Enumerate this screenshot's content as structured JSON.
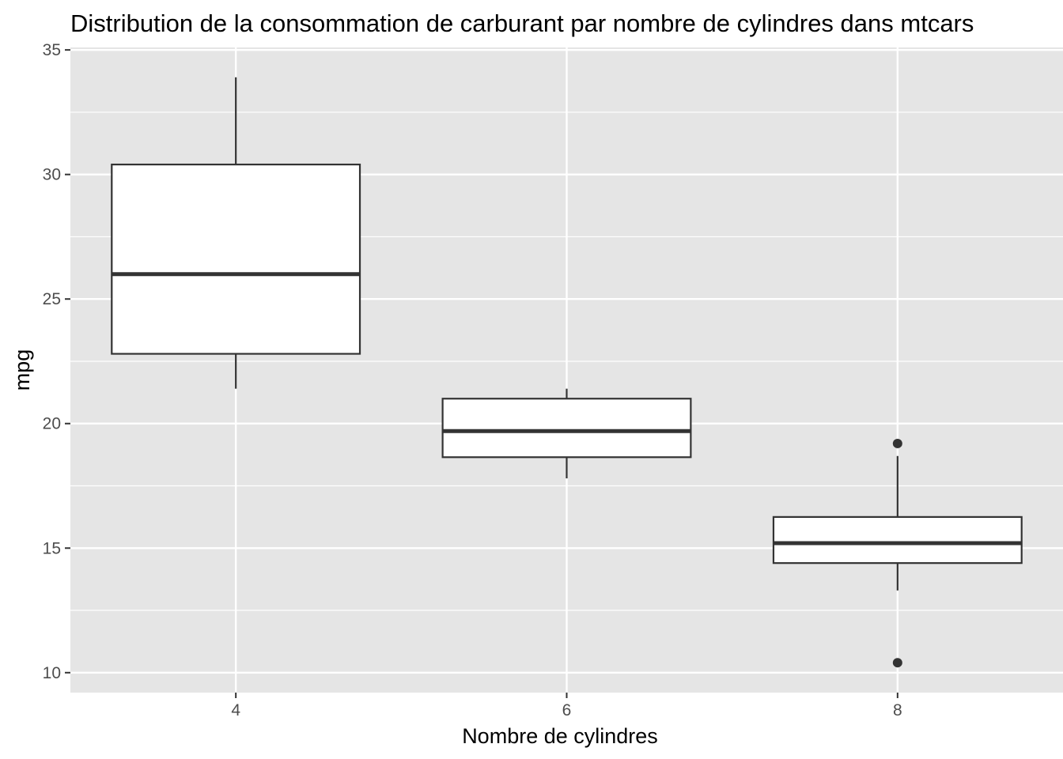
{
  "chart_data": {
    "type": "boxplot",
    "title": "Distribution de la consommation de carburant par nombre de cylindres dans mtcars",
    "xlabel": "Nombre de cylindres",
    "ylabel": "mpg",
    "x_ticks": [
      "4",
      "6",
      "8"
    ],
    "y_ticks": [
      10,
      15,
      20,
      25,
      30,
      35
    ],
    "xlim": [
      3,
      9
    ],
    "ylim": [
      9.2,
      35.1
    ],
    "grid": true,
    "legend": "none",
    "colors": {
      "panel_background": "#e5e5e5",
      "gridline": "#ffffff",
      "box_fill": "#ffffff",
      "box_stroke": "#333333",
      "tick_text": "#4d4d4d"
    },
    "boxes": [
      {
        "category": "4",
        "x": 4,
        "whisker_low": 21.4,
        "q1": 22.8,
        "median": 26.0,
        "q3": 30.4,
        "whisker_high": 33.9,
        "outliers": []
      },
      {
        "category": "6",
        "x": 6,
        "whisker_low": 17.8,
        "q1": 18.65,
        "median": 19.7,
        "q3": 21.0,
        "whisker_high": 21.4,
        "outliers": []
      },
      {
        "category": "8",
        "x": 8,
        "whisker_low": 13.3,
        "q1": 14.4,
        "median": 15.2,
        "q3": 16.25,
        "whisker_high": 18.7,
        "outliers": [
          19.2,
          10.4
        ]
      }
    ]
  }
}
